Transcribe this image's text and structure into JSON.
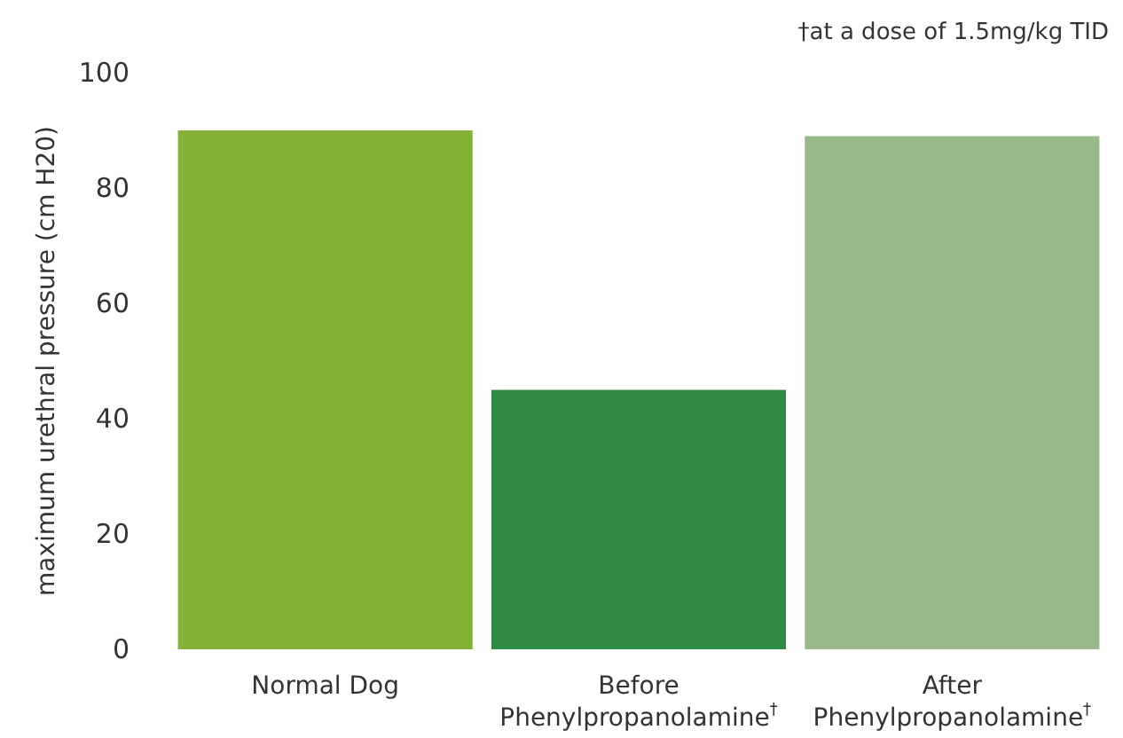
{
  "chart_data": {
    "type": "bar",
    "ylabel": "maximum urethral pressure (cm H20)",
    "categories": [
      "Normal Dog",
      "Before Phenylpropanolamine$^{†}$",
      "After Phenylpropanolamine$^{†}$"
    ],
    "values": [
      90,
      45,
      89
    ],
    "colors": [
      "#83b336",
      "#2e8b41",
      "#99b98a"
    ],
    "ylim": [
      0,
      100
    ],
    "yticks": [
      0,
      20,
      40,
      60,
      80,
      100
    ],
    "grid": false,
    "annotations": [
      "†at a dose of 1.5mg/kg TID"
    ]
  }
}
